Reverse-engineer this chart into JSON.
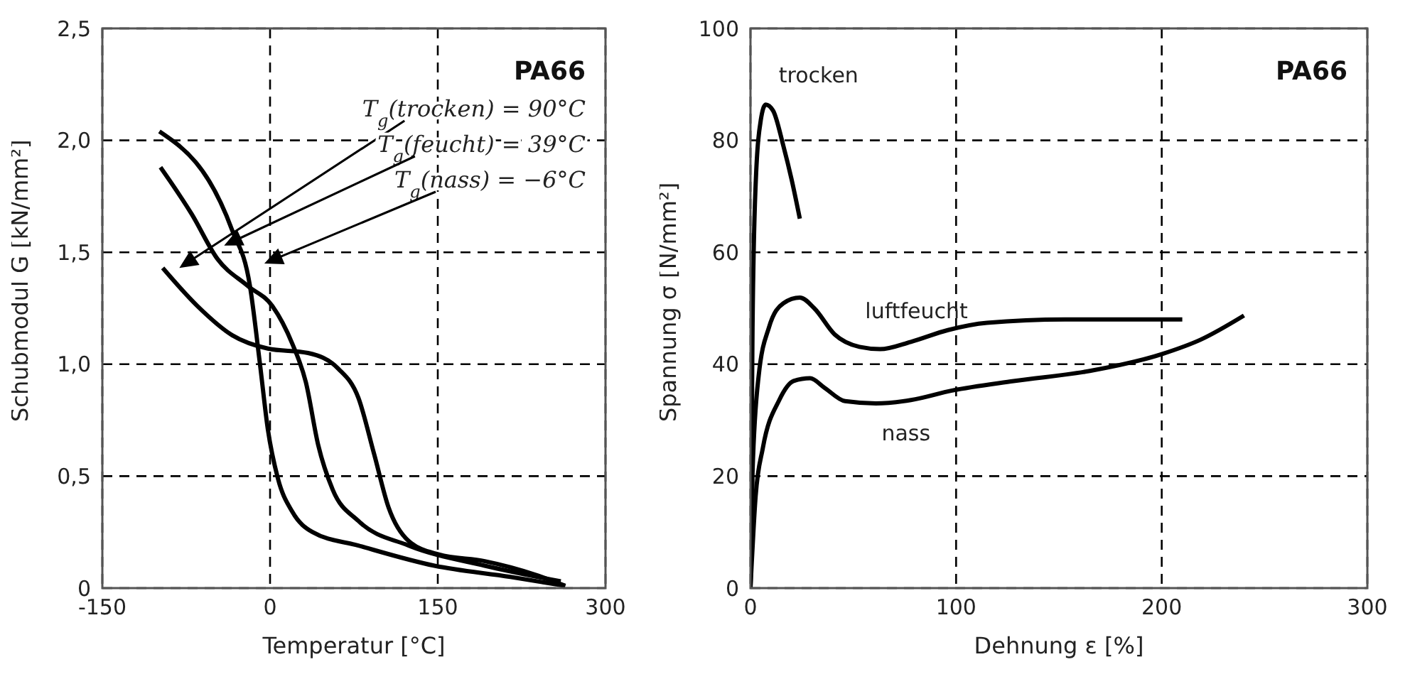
{
  "chart_data": [
    {
      "type": "line",
      "xlabel": "Temperatur [°C]",
      "ylabel": "Schubmodul G [kN/mm²]",
      "xlim": [
        -150,
        300
      ],
      "xticks": [
        -150,
        0,
        150,
        300
      ],
      "ylim": [
        0,
        2.5
      ],
      "yticks": [
        0,
        {
          "value": 0.5,
          "label": "0,5"
        },
        {
          "value": 1,
          "label": "1,0"
        },
        {
          "value": 1.5,
          "label": "1,5"
        },
        {
          "value": 2,
          "label": "2,0"
        },
        {
          "value": 2.5,
          "label": "2,5"
        }
      ],
      "grid": true,
      "legend": false,
      "marker": "none",
      "line_style": "solid",
      "annotations": [
        "PA66",
        "T$_{g}$(trocken) = 90°C",
        "T$_{g}$(feucht) = 39°C",
        "T$_{g}$(nass) = −6°C"
      ],
      "series": [
        {
          "color": "#000000",
          "x": [
            -99,
            -34,
            -18,
            -9,
            -2,
            7,
            20,
            38,
            79,
            147,
            215,
            264
          ],
          "values": [
            2.04,
            1.6,
            1.35,
            1.0,
            0.71,
            0.49,
            0.34,
            0.25,
            0.19,
            0.1,
            0.05,
            0.01
          ]
        },
        {
          "color": "#000000",
          "x": [
            -98,
            -70,
            -47,
            -20,
            2,
            20,
            32,
            43,
            56,
            79,
            124,
            192,
            260
          ],
          "values": [
            1.88,
            1.67,
            1.47,
            1.35,
            1.26,
            1.09,
            0.92,
            0.64,
            0.44,
            0.3,
            0.19,
            0.1,
            0.03
          ]
        },
        {
          "color": "#000000",
          "x": [
            -96,
            -65,
            -34,
            -2,
            34,
            61,
            79,
            93,
            106,
            124,
            151,
            192,
            237,
            264
          ],
          "values": [
            1.43,
            1.26,
            1.13,
            1.07,
            1.05,
            0.98,
            0.85,
            0.6,
            0.36,
            0.21,
            0.15,
            0.12,
            0.06,
            0.01
          ]
        }
      ]
    },
    {
      "type": "line",
      "xlabel": "Dehnung ε [%]",
      "ylabel": "Spannung σ [N/mm²]",
      "xlim": [
        0,
        300
      ],
      "xticks": [
        0,
        100,
        200,
        300
      ],
      "ylim": [
        0,
        100
      ],
      "yticks": [
        0,
        20,
        40,
        60,
        80,
        100
      ],
      "grid": true,
      "legend": false,
      "marker": "none",
      "line_style": "solid",
      "annotations": [
        "PA66"
      ],
      "series": [
        {
          "name": "trocken",
          "color": "#000000",
          "x": [
            0,
            1,
            2.5,
            5,
            7.4,
            11,
            16,
            20,
            24
          ],
          "values": [
            0,
            46.6,
            72,
            83.6,
            86.4,
            85.3,
            79,
            73,
            66
          ]
        },
        {
          "name": "luftfeucht",
          "color": "#000000",
          "x": [
            0,
            1,
            4,
            9,
            16,
            24,
            31,
            41,
            53,
            63,
            78,
            96,
            115,
            153,
            210
          ],
          "values": [
            0,
            20.7,
            38,
            46.6,
            50.9,
            51.9,
            50,
            45.3,
            43.1,
            42.7,
            44,
            46.1,
            47.4,
            48,
            48
          ]
        },
        {
          "name": "nass",
          "color": "#000000",
          "x": [
            0,
            2.5,
            6,
            14,
            21,
            29,
            36,
            46,
            61,
            78,
            98,
            128,
            165,
            200,
            219,
            240
          ],
          "values": [
            0,
            16.4,
            25,
            33.6,
            37,
            37.5,
            35.8,
            33.4,
            33,
            33.6,
            35.3,
            37,
            38.8,
            41.8,
            44.4,
            48.7
          ]
        }
      ]
    }
  ]
}
